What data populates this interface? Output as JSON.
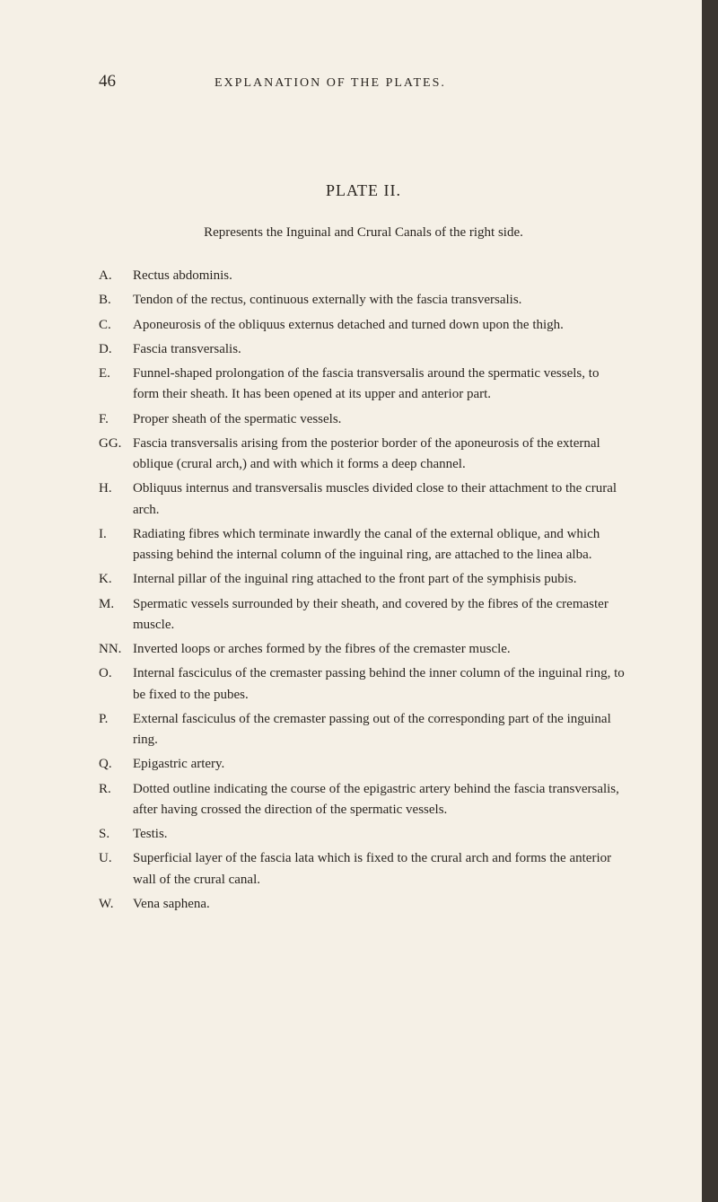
{
  "page_number": "46",
  "running_title": "EXPLANATION OF THE PLATES.",
  "plate_title": "PLATE II.",
  "subtitle": "Represents the Inguinal and Crural Canals of the right side.",
  "entries": [
    {
      "label": "A.",
      "text": "Rectus abdominis."
    },
    {
      "label": "B.",
      "text": "Tendon of the rectus, continuous externally with the fascia transversalis."
    },
    {
      "label": "C.",
      "text": "Aponeurosis of the obliquus externus detached and turned down upon the thigh."
    },
    {
      "label": "D.",
      "text": "Fascia transversalis."
    },
    {
      "label": "E.",
      "text": "Funnel-shaped prolongation of the fascia transversalis around the spermatic vessels, to form their sheath.   It has been opened at its upper and anterior part."
    },
    {
      "label": "F.",
      "text": "Proper sheath of the spermatic vessels."
    },
    {
      "label": "GG.",
      "text": "Fascia transversalis arising from the posterior border of the aponeurosis of the external oblique (crural arch,) and with which it forms a deep channel."
    },
    {
      "label": "H.",
      "text": "Obliquus internus and transversalis muscles divided close to their attachment to the crural arch."
    },
    {
      "label": "I.",
      "text": "Radiating fibres which terminate inwardly the canal of the external oblique, and which passing behind the internal column of the inguinal ring, are attached to the linea alba."
    },
    {
      "label": "K.",
      "text": "Internal pillar of the inguinal ring attached to the front part of the symphisis pubis."
    },
    {
      "label": "M.",
      "text": "Spermatic vessels surrounded by their sheath, and covered by the fibres of the cremaster muscle."
    },
    {
      "label": "NN.",
      "text": "Inverted loops or arches formed by the fibres of the cremaster muscle."
    },
    {
      "label": "O.",
      "text": "Internal fasciculus of the cremaster passing behind the inner column of the inguinal ring, to be fixed to the pubes."
    },
    {
      "label": "P.",
      "text": "External fasciculus of the cremaster passing out of the corresponding part of the inguinal ring."
    },
    {
      "label": "Q.",
      "text": "Epigastric artery."
    },
    {
      "label": "R.",
      "text": "Dotted outline indicating the course of the epigastric artery behind the fascia transversalis, after having crossed the direction of the spermatic vessels."
    },
    {
      "label": "S.",
      "text": "Testis."
    },
    {
      "label": "U.",
      "text": "Superficial layer of the fascia lata which is fixed to the crural arch and forms the anterior wall of the crural canal."
    },
    {
      "label": "W.",
      "text": "Vena saphena."
    }
  ]
}
